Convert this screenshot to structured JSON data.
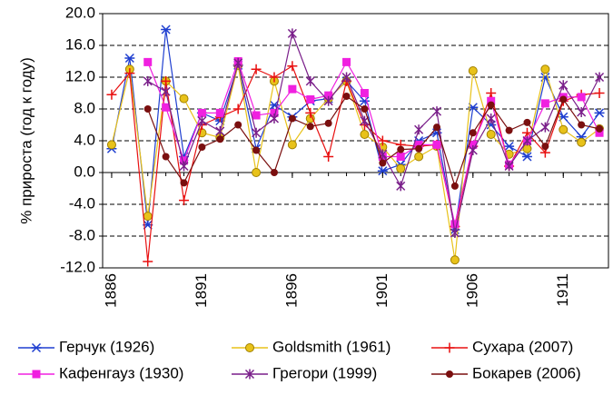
{
  "chart_data": {
    "type": "line",
    "ylabel": "% прироста (год к году)",
    "x": [
      1886,
      1887,
      1888,
      1889,
      1890,
      1891,
      1892,
      1893,
      1894,
      1895,
      1896,
      1897,
      1898,
      1899,
      1900,
      1901,
      1902,
      1903,
      1904,
      1905,
      1906,
      1907,
      1908,
      1909,
      1910,
      1911,
      1912,
      1913
    ],
    "xlim": [
      1885.5,
      1913.5
    ],
    "xticks": [
      1886,
      1891,
      1896,
      1901,
      1906,
      1911
    ],
    "ylim": [
      -12,
      20
    ],
    "yticks": [
      {
        "value": -12,
        "label": "-12.0"
      },
      {
        "value": -8,
        "label": "-8.0"
      },
      {
        "value": -4,
        "label": "-4.0"
      },
      {
        "value": 0,
        "label": "0.0"
      },
      {
        "value": 4,
        "label": "4.0"
      },
      {
        "value": 8,
        "label": "8.0"
      },
      {
        "value": 12,
        "label": "12.0"
      },
      {
        "value": 16,
        "label": "16.0"
      },
      {
        "value": 20,
        "label": "20.0"
      }
    ],
    "grid": true,
    "legend": "bottom",
    "series": [
      {
        "name": "Герчук (1926)",
        "color": "#1f3fd0",
        "marker": "asterisk",
        "values": [
          3.0,
          14.4,
          -6.6,
          18,
          2,
          7.5,
          6.5,
          13.5,
          3,
          8.5,
          7,
          9,
          9.3,
          11.5,
          9,
          0.2,
          1.0,
          4,
          5,
          -7.2,
          8.2,
          6,
          3.3,
          2,
          12,
          7,
          4.5,
          7.5
        ]
      },
      {
        "name": "Goldsmith (1961)",
        "color": "#e8c21a",
        "marker": "circle",
        "values": [
          3.5,
          13,
          -5.5,
          11.5,
          9.3,
          5,
          4.4,
          13.5,
          0,
          11.5,
          3.5,
          6.8,
          9.3,
          11.5,
          4.8,
          3.2,
          0.5,
          2,
          3.3,
          -11,
          12.8,
          4.8,
          2.3,
          3,
          13,
          5.4,
          3.8,
          5.5
        ]
      },
      {
        "name": "Сухара (2007)",
        "color": "#e81010",
        "marker": "plus",
        "values": [
          9.8,
          12.5,
          -11.2,
          11.5,
          -3.5,
          6,
          7,
          8,
          13,
          12,
          13.4,
          7.5,
          2,
          11.5,
          6,
          4,
          3.5,
          3.3,
          3.5,
          -6.8,
          3.3,
          10,
          0.8,
          5,
          2.5,
          9,
          9.8,
          10
        ]
      },
      {
        "name": "Кафенгауз (1930)",
        "color": "#f020e0",
        "marker": "square",
        "values": [
          null,
          null,
          13.9,
          8.2,
          1.5,
          7.5,
          7.5,
          14,
          7.2,
          7.5,
          10.5,
          9.2,
          9.7,
          13.9,
          10,
          2,
          2,
          3.5,
          3.5,
          -6.5,
          3.5,
          9,
          1,
          4,
          8.7,
          9.5,
          9.5,
          5
        ]
      },
      {
        "name": "Грегори (1999)",
        "color": "#7a1f8a",
        "marker": "star",
        "values": [
          null,
          null,
          11.5,
          10.2,
          0.8,
          6.5,
          5.2,
          13.8,
          5,
          6.8,
          17.5,
          11.5,
          9,
          12,
          6.5,
          2.3,
          -1.7,
          5.4,
          7.7,
          -7.6,
          2.8,
          6.8,
          0.8,
          4,
          5.7,
          11,
          7.6,
          12
        ]
      },
      {
        "name": "Бокарев (2006)",
        "color": "#7a0f0f",
        "marker": "dot",
        "values": [
          null,
          null,
          8,
          2,
          -1.3,
          3.2,
          4.2,
          6,
          2.8,
          0,
          6.8,
          5.8,
          6.2,
          9.6,
          8,
          1.2,
          2.9,
          3,
          5.7,
          -1.7,
          5,
          8.5,
          5.3,
          6.3,
          3.3,
          9.2,
          6,
          5.5
        ]
      }
    ]
  }
}
